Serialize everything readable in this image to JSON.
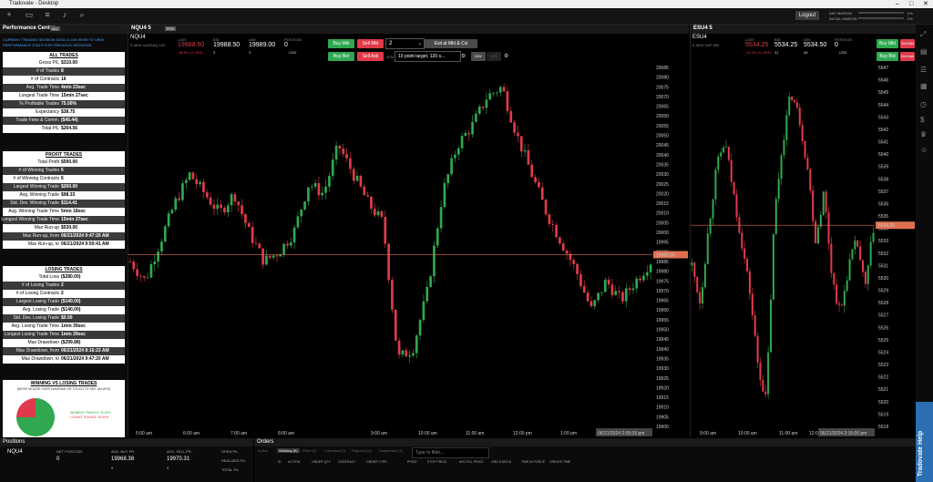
{
  "window": {
    "title": "Tradovate - Desktop"
  },
  "toolbar": {
    "logout_label": "Logout",
    "day_margin_label": "DAY MARGIN",
    "initial_margin_label": "INITIAL MARGIN",
    "day_margin_pct": "0%",
    "initial_margin_pct": "0%"
  },
  "perf": {
    "tab_label": "Performance Center",
    "tab_badge": "ALL",
    "note1": "CURRENT TRADING SESSION DATA CLICK HERE TO VIEW",
    "note2": "PERFORMANCE STATS FOR PREVIOUS SESSIONS",
    "all_title": "ALL TRADES",
    "all": [
      {
        "k": "Gross P/L",
        "v": "$310.00"
      },
      {
        "k": "# of Trades",
        "v": "8"
      },
      {
        "k": "# of Contracts",
        "v": "16"
      },
      {
        "k": "Avg. Trade Time",
        "v": "4min 23sec"
      },
      {
        "k": "Longest Trade Time",
        "v": "15min 27sec"
      },
      {
        "k": "% Profitable Trades",
        "v": "75.00%"
      },
      {
        "k": "Expectancy",
        "v": "$38.75"
      },
      {
        "k": "Trade Fees & Comm.",
        "v": "($45.44)"
      },
      {
        "k": "Total P/L",
        "v": "$264.56"
      }
    ],
    "profit_title": "PROFIT TRADES",
    "profit": [
      {
        "k": "Total Profit",
        "v": "$590.00"
      },
      {
        "k": "# of Winning Trades",
        "v": "6"
      },
      {
        "k": "# of Winning Contracts",
        "v": "6"
      },
      {
        "k": "Largest Winning Trade",
        "v": "$260.00"
      },
      {
        "k": "Avg. Winning Trade",
        "v": "$98.33"
      },
      {
        "k": "Std. Dev. Winning Trade",
        "v": "$114.41"
      },
      {
        "k": "Avg. Winning Trade Time",
        "v": "5min 18sec"
      },
      {
        "k": "Longest Winning Trade Time",
        "v": "15min 27sec"
      },
      {
        "k": "Max Run-up",
        "v": "$530.00"
      },
      {
        "k": "Max Run-up, from",
        "v": "06/21/2024 9:47:20 AM"
      },
      {
        "k": "Max Run-up, to",
        "v": "06/21/2024 9:50:41 AM"
      }
    ],
    "losing_title": "LOSING TRADES",
    "losing": [
      {
        "k": "Total Loss",
        "v": "($280.00)"
      },
      {
        "k": "# of Losing Trades",
        "v": "2"
      },
      {
        "k": "# of Losing Contracts",
        "v": "2"
      },
      {
        "k": "Largest Losing Trade",
        "v": "($140.00)"
      },
      {
        "k": "Avg. Losing Trade",
        "v": "($140.00)"
      },
      {
        "k": "Std. Dev. Losing Trade",
        "v": "$0.00"
      },
      {
        "k": "Avg. Losing Trade Time",
        "v": "1min 39sec"
      },
      {
        "k": "Longest Losing Trade Time",
        "v": "1min 39sec"
      },
      {
        "k": "Max Drawdown",
        "v": "($299.88)"
      },
      {
        "k": "Max Drawdown, from",
        "v": "06/21/2024 8:16:23 AM"
      },
      {
        "k": "Max Drawdown, to",
        "v": "06/21/2024 9:47:20 AM"
      }
    ],
    "wvl_title": "WINNING VS LOSING TRADES",
    "wvl_note": "(MOVE MOUSE OVER DIAGRAM OR TOUCH TO SEE VALUES)",
    "wvl_win_label": "WINNING TRADES: 75.00%",
    "wvl_lose_label": "LOSING TRADES: 25.00%",
    "wvl_win_pct": 75,
    "wvl_win_color": "#2fa84f",
    "wvl_lose_color": "#e03a4a"
  },
  "nq": {
    "tab_label": "NQU4 5",
    "tab_badge": "RTH",
    "symbol": "NQU4",
    "desc": "E-MINI NASDAQ 100",
    "last_lbl": "LAST",
    "last": "19988.50",
    "chg": "-86.00 (-0.43%)",
    "bid_lbl": "BID",
    "bid": "19988.50",
    "bid_sz": "3",
    "ask_lbl": "ASK",
    "ask": "19989.00",
    "ask_sz": "3",
    "pos_lbl": "POSITION",
    "pos": "0",
    "pos_ccy": "USD",
    "buy_mkt": "Buy Mkt",
    "sell_mkt": "Sell Mkt",
    "buy_bid": "Buy Bid",
    "sell_ask": "Sell Ask",
    "qty": "2",
    "exit_label": "Exit at Mkt & Cxl",
    "atm_lbl": "ATM",
    "atm": "10 point target, 120 s...",
    "tif": "DAY",
    "tif2": "GTC",
    "price_line": 19988.5,
    "ymin": 19900,
    "ymax": 20085,
    "yticks": [
      20085,
      20080,
      20075,
      20070,
      20065,
      20060,
      20055,
      20050,
      20045,
      20040,
      20035,
      20030,
      20025,
      20020,
      20015,
      20010,
      20005,
      20000,
      19995,
      19990,
      19985,
      19980,
      19975,
      19970,
      19965,
      19960,
      19955,
      19950,
      19945,
      19940,
      19935,
      19930,
      19925,
      19920,
      19915,
      19910,
      19905,
      19900
    ],
    "xticks": [
      "5:00 am",
      "6:00 am",
      "7:00 am",
      "8:00 am",
      "9:00 am",
      "10:00 am",
      "11:00 am",
      "12:00 pm",
      "1:00 pm",
      "2:00 pm",
      "3:15"
    ],
    "last_price_tag": "19988.50",
    "time_tag": "06/21/2024 2:55:09 pm"
  },
  "es": {
    "tab_label": "ESU4 5",
    "symbol": "ESU4",
    "desc": "E-MINI S&P 500",
    "last_lbl": "LAST",
    "last": "5534.25",
    "chg": "-10.25 (-0.18%)",
    "bid_lbl": "BID",
    "bid": "5534.25",
    "bid_sz": "31",
    "ask_lbl": "ASK",
    "ask": "5534.50",
    "ask_sz": "48",
    "pos_lbl": "POSITION",
    "pos": "0",
    "pos_ccy": "USD",
    "buy_mkt": "Buy Mkt",
    "sell_mkt": "Sell Mkt",
    "buy_bid": "Buy Bid",
    "sell_ask": "Sell Ask",
    "price_line": 5534.25,
    "ymin": 5518,
    "ymax": 5547,
    "yticks": [
      5547,
      5546,
      5545,
      5544,
      5543,
      5542,
      5541,
      5540,
      5539,
      5538,
      5537,
      5536,
      5535,
      5534,
      5533,
      5532,
      5531,
      5530,
      5529,
      5528,
      5527,
      5526,
      5525,
      5524,
      5523,
      5522,
      5521,
      5520,
      5519,
      5518
    ],
    "xticks": [
      "9:00 am",
      "10:00 am",
      "11:00 am",
      "12:00 pm",
      "1:00 pm"
    ],
    "last_price_tag": "5534.25",
    "time_tag": "06/21/2024 2:15:00 pm"
  },
  "positions": {
    "tab_label": "Positions",
    "symbol": "NQU4",
    "h_net": "NET POSITION",
    "net": "0",
    "h_avgbuy": "AVG. BUY PR.",
    "avgbuy": "19968.38",
    "buy_n": "8",
    "h_avgsell": "AVG. SELL PR.",
    "avgsell": "19970.31",
    "sell_n": "8",
    "h_open": "OPEN P/L",
    "h_realized": "REALIZED P/L",
    "h_total": "TOTAL P/L"
  },
  "orders": {
    "tab_label": "Orders",
    "tabs": [
      "Active",
      "Working (0)",
      "Filled (0)",
      "Canceled (0)",
      "Rejected (0)",
      "Suspended (0)"
    ],
    "filter_placeholder": "Type to filter...",
    "cols": [
      "ID",
      "ACTION",
      "ORDER QTY",
      "CONTRACT",
      "ORDER TYPE",
      "PRICE",
      "STOP PRICE",
      "AVG FILL PRICE",
      "ORD STATUS",
      "TIME IN FORCE",
      "CREATE TIME"
    ]
  },
  "help_label": "Tradovate Help"
}
